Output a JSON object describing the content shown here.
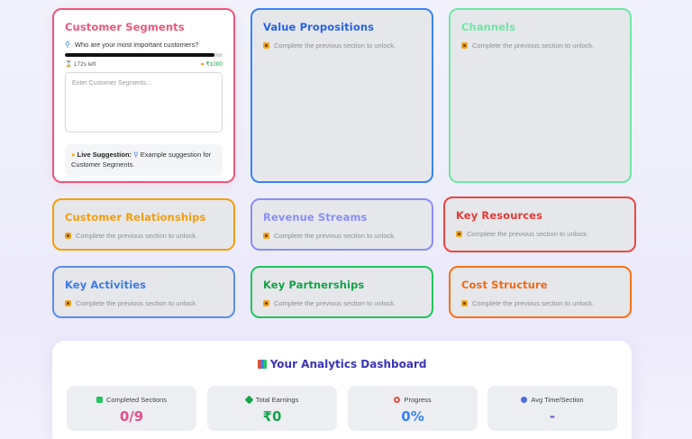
{
  "colors": {
    "customer_segments": "#f0567a",
    "value_propositions": "#3b82f6",
    "channels": "#6ee7a6",
    "customer_relationships": "#f59e0b",
    "revenue_streams": "#8b8ef5",
    "key_resources": "#ef4444",
    "key_activities": "#5b8def",
    "key_partnerships": "#22c55e",
    "cost_structure": "#f97316"
  },
  "locked_text": "Complete the previous section to unlock.",
  "sections": {
    "customer_segments": {
      "title": "Customer Segments",
      "question": "Who are your most important customers?",
      "progress": 0.95,
      "time_left": "172s left",
      "reward": "₹1000",
      "placeholder": "Enter Customer Segments...",
      "suggestion_label": "Live Suggestion:",
      "suggestion_text": "Example suggestion for Customer Segments."
    },
    "value_propositions": {
      "title": "Value Propositions"
    },
    "channels": {
      "title": "Channels"
    },
    "customer_relationships": {
      "title": "Customer Relationships"
    },
    "revenue_streams": {
      "title": "Revenue Streams"
    },
    "key_resources": {
      "title": "Key Resources"
    },
    "key_activities": {
      "title": "Key Activities"
    },
    "key_partnerships": {
      "title": "Key Partnerships"
    },
    "cost_structure": {
      "title": "Cost Structure"
    }
  },
  "dashboard": {
    "title": "Your Analytics Dashboard",
    "stats": [
      {
        "label": "Completed Sections",
        "value": "0/9",
        "color": "#e84c8b",
        "icon": "check-icon"
      },
      {
        "label": "Total Earnings",
        "value": "₹0",
        "color": "#16a34a",
        "icon": "money-icon"
      },
      {
        "label": "Progress",
        "value": "0%",
        "color": "#3b82f6",
        "icon": "target-icon"
      },
      {
        "label": "Avg Time/Section",
        "value": "-",
        "color": "#6d5bd0",
        "icon": "clock-icon"
      }
    ]
  }
}
